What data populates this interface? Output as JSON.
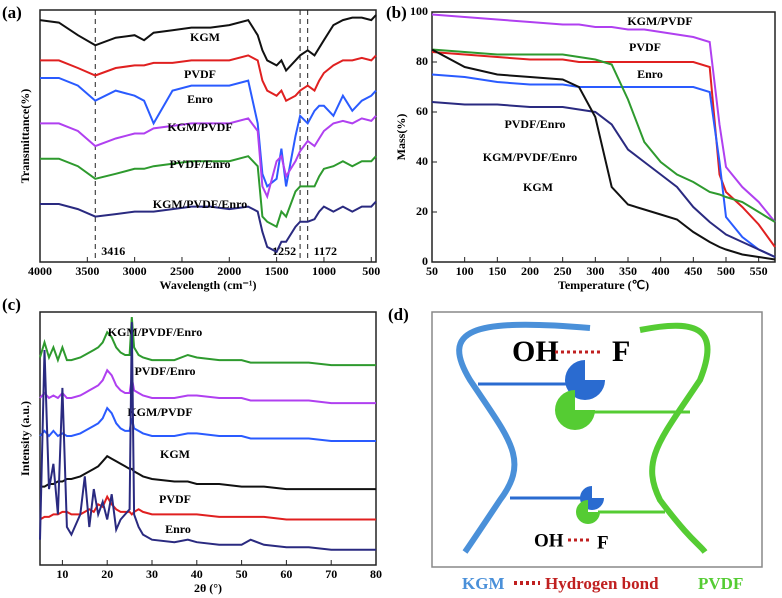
{
  "chart_data": [
    {
      "type": "line",
      "panel_label": "(a)",
      "x_label": "Wavelength (cm⁻¹)",
      "y_label": "Transmittance(%)",
      "xlim": [
        4000,
        450
      ],
      "xticks": [
        4000,
        3500,
        3000,
        2500,
        2000,
        1500,
        1000,
        500
      ],
      "ylim": [
        0,
        100
      ],
      "vlines": [
        3416,
        1252,
        1172
      ],
      "x": [
        4000,
        3800,
        3600,
        3416,
        3200,
        3000,
        2900,
        2800,
        2600,
        2400,
        2200,
        2000,
        1800,
        1700,
        1650,
        1600,
        1500,
        1450,
        1400,
        1300,
        1252,
        1172,
        1100,
        1050,
        1000,
        900,
        800,
        700,
        600,
        500,
        450
      ],
      "series": [
        {
          "name": "KGM",
          "color": "#111111",
          "values": [
            96,
            95,
            90,
            86,
            89,
            90,
            88,
            91,
            92,
            93,
            93,
            94,
            96,
            90,
            84,
            80,
            78,
            80,
            76,
            80,
            82,
            84,
            82,
            85,
            88,
            94,
            96,
            97,
            97,
            96,
            98
          ]
        },
        {
          "name": "PVDF",
          "color": "#e02020",
          "values": [
            80,
            80,
            77,
            74,
            77,
            78,
            78,
            79,
            79,
            80,
            80,
            80,
            82,
            80,
            72,
            68,
            66,
            68,
            64,
            66,
            68,
            70,
            68,
            72,
            75,
            78,
            80,
            80,
            81,
            80,
            82
          ]
        },
        {
          "name": "Enro",
          "color": "#2a5bff",
          "values": [
            73,
            73,
            70,
            64,
            68,
            66,
            64,
            55,
            68,
            70,
            70,
            70,
            72,
            55,
            35,
            30,
            33,
            45,
            30,
            50,
            58,
            55,
            60,
            62,
            62,
            58,
            66,
            60,
            64,
            66,
            68
          ]
        },
        {
          "name": "KGM/PVDF",
          "color": "#b040f0",
          "values": [
            55,
            55,
            52,
            46,
            49,
            51,
            51,
            53,
            54,
            55,
            55,
            55,
            57,
            52,
            30,
            26,
            40,
            42,
            34,
            40,
            44,
            48,
            46,
            49,
            52,
            55,
            56,
            55,
            57,
            56,
            58
          ]
        },
        {
          "name": "PVDF/Enro",
          "color": "#2e9a2e",
          "values": [
            41,
            41,
            38,
            33,
            35,
            37,
            37,
            38,
            39,
            40,
            40,
            40,
            42,
            38,
            18,
            16,
            14,
            20,
            18,
            28,
            30,
            30,
            30,
            34,
            37,
            38,
            40,
            38,
            40,
            40,
            42
          ]
        },
        {
          "name": "KGM/PVDF/Enro",
          "color": "#2a2a80",
          "values": [
            23,
            23,
            21,
            18,
            19,
            20,
            20,
            20,
            21,
            22,
            22,
            21,
            22,
            20,
            12,
            6,
            4,
            8,
            8,
            14,
            16,
            16,
            17,
            20,
            22,
            20,
            22,
            20,
            22,
            22,
            24
          ]
        }
      ]
    },
    {
      "type": "line",
      "panel_label": "(b)",
      "x_label": "Temperature (℃)",
      "y_label": "Mass(%)",
      "xlim": [
        50,
        575
      ],
      "xticks": [
        50,
        100,
        150,
        200,
        250,
        300,
        350,
        400,
        450,
        500,
        550
      ],
      "ylim": [
        0,
        100
      ],
      "yticks": [
        0,
        20,
        40,
        60,
        80,
        100
      ],
      "x": [
        50,
        100,
        150,
        200,
        250,
        275,
        300,
        325,
        350,
        375,
        400,
        425,
        450,
        475,
        490,
        500,
        525,
        550,
        575
      ],
      "series": [
        {
          "name": "KGM/PVDF",
          "color": "#b040f0",
          "values": [
            99,
            98,
            97,
            96,
            95,
            95,
            94,
            94,
            93,
            93,
            92,
            91,
            90,
            88,
            55,
            38,
            30,
            24,
            16
          ]
        },
        {
          "name": "PVDF",
          "color": "#e02020",
          "values": [
            84,
            83,
            82,
            81,
            81,
            80,
            80,
            80,
            80,
            80,
            80,
            80,
            80,
            78,
            35,
            28,
            22,
            15,
            6
          ]
        },
        {
          "name": "Enro",
          "color": "#2a5bff",
          "values": [
            75,
            74,
            72,
            71,
            71,
            70,
            70,
            70,
            70,
            70,
            70,
            70,
            70,
            68,
            40,
            18,
            10,
            5,
            2
          ]
        },
        {
          "name": "PVDF/Enro",
          "color": "#2e9a2e",
          "values": [
            85,
            84,
            83,
            83,
            83,
            82,
            81,
            79,
            65,
            48,
            40,
            35,
            32,
            28,
            27,
            26,
            24,
            20,
            16
          ]
        },
        {
          "name": "KGM/PVDF/Enro",
          "color": "#2a2a80",
          "values": [
            64,
            63,
            63,
            62,
            62,
            61,
            60,
            55,
            45,
            40,
            35,
            30,
            22,
            16,
            13,
            11,
            8,
            5,
            2
          ]
        },
        {
          "name": "KGM",
          "color": "#111111",
          "values": [
            85,
            78,
            75,
            74,
            73,
            70,
            58,
            30,
            23,
            21,
            19,
            17,
            12,
            8,
            6,
            5,
            3,
            2,
            1
          ]
        }
      ]
    },
    {
      "type": "line",
      "panel_label": "(c)",
      "x_label": "2θ (°)",
      "y_label": "Intensity (a.u.)",
      "xlim": [
        5,
        80
      ],
      "xticks": [
        10,
        20,
        30,
        40,
        50,
        60,
        70,
        80
      ],
      "ylim": [
        0,
        100
      ],
      "x": [
        5,
        6,
        7,
        8,
        9,
        10,
        11,
        12,
        14,
        15,
        16,
        17,
        18,
        19,
        20,
        21,
        22,
        23,
        24,
        25,
        25.5,
        26,
        27,
        28,
        30,
        35,
        38,
        40,
        45,
        50,
        52,
        55,
        60,
        65,
        70,
        75,
        80
      ],
      "series": [
        {
          "name": "KGM/PVDF/Enro",
          "color": "#2e9a2e",
          "values": [
            82,
            88,
            82,
            86,
            81,
            86,
            81,
            81,
            82,
            83,
            84,
            85,
            86,
            88,
            92,
            90,
            86,
            84,
            83,
            83,
            98,
            86,
            83,
            82,
            81,
            81,
            83,
            82,
            81,
            81,
            80,
            80,
            80,
            80,
            79,
            79,
            79
          ]
        },
        {
          "name": "PVDF/Enro",
          "color": "#b040f0",
          "values": [
            66,
            68,
            66,
            67,
            66,
            68,
            66,
            66,
            67,
            68,
            69,
            70,
            71,
            73,
            77,
            75,
            71,
            69,
            68,
            68,
            74,
            69,
            68,
            67,
            66,
            66,
            67,
            67,
            66,
            66,
            65,
            65,
            65,
            65,
            64,
            64,
            64
          ]
        },
        {
          "name": "KGM/PVDF",
          "color": "#2a5bff",
          "values": [
            51,
            53,
            51,
            53,
            51,
            52,
            51,
            51,
            52,
            53,
            54,
            55,
            56,
            58,
            62,
            60,
            56,
            54,
            53,
            53,
            58,
            54,
            53,
            52,
            51,
            51,
            52,
            52,
            51,
            51,
            50,
            50,
            50,
            50,
            49,
            49,
            49
          ]
        },
        {
          "name": "KGM",
          "color": "#111111",
          "values": [
            31,
            31,
            32,
            32,
            33,
            33,
            34,
            34,
            35,
            36,
            37,
            38,
            39,
            41,
            43,
            42,
            41,
            40,
            39,
            38,
            38,
            37,
            36,
            35,
            34,
            33,
            33,
            32,
            32,
            31,
            31,
            31,
            30,
            30,
            30,
            30,
            30
          ]
        },
        {
          "name": "PVDF",
          "color": "#e02020",
          "values": [
            18,
            19,
            19,
            20,
            20,
            21,
            21,
            20,
            20,
            21,
            22,
            21,
            24,
            23,
            27,
            24,
            22,
            21,
            21,
            21,
            20,
            21,
            22,
            21,
            20,
            20,
            20,
            20,
            19,
            19,
            19,
            19,
            18,
            18,
            18,
            18,
            18
          ]
        },
        {
          "name": "Enro",
          "color": "#2a2a80",
          "values": [
            10,
            85,
            30,
            40,
            20,
            70,
            15,
            12,
            20,
            35,
            15,
            30,
            20,
            25,
            18,
            28,
            14,
            18,
            20,
            22,
            96,
            20,
            15,
            12,
            10,
            9,
            10,
            9,
            8,
            8,
            10,
            8,
            7,
            7,
            6,
            6,
            6
          ]
        }
      ]
    }
  ],
  "diagram": {
    "label": "(d)",
    "top_left": "OH",
    "top_right": "F",
    "bottom_left": "OH",
    "bottom_right": "F",
    "legend": [
      "KGM",
      "Hydrogen bond",
      "PVDF"
    ]
  }
}
